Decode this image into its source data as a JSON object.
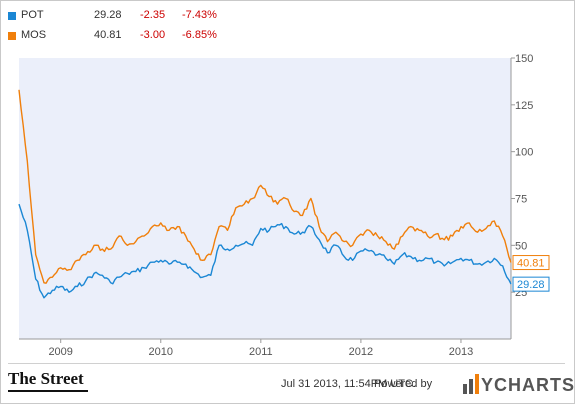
{
  "colors": {
    "pot": "#1b87d4",
    "mos": "#f07f0b",
    "negative": "#cc0000",
    "plot_bg": "#ebeffa"
  },
  "legend": [
    {
      "ticker": "POT",
      "price": "29.28",
      "change": "-2.35",
      "pct": "-7.43%",
      "color": "#1b87d4"
    },
    {
      "ticker": "MOS",
      "price": "40.81",
      "change": "-3.00",
      "pct": "-6.85%",
      "color": "#f07f0b"
    }
  ],
  "footer": {
    "brand": "The Street",
    "timestamp": "Jul 31 2013, 11:54PM UTC.",
    "powered_by": "Powered by",
    "logo_text": "YCHARTS"
  },
  "chart_data": {
    "type": "line",
    "title": "",
    "xlabel": "",
    "ylabel": "",
    "ylim": [
      0,
      150
    ],
    "yticks": [
      25,
      50,
      75,
      100,
      125,
      150
    ],
    "xticks": [
      "2009",
      "2010",
      "2011",
      "2012",
      "2013"
    ],
    "xrange": [
      "2008-08",
      "2013-07"
    ],
    "grid": false,
    "series": [
      {
        "name": "POT",
        "color": "#1b87d4",
        "last_label": "29.28",
        "points": [
          [
            "2008-08",
            72
          ],
          [
            "2008-09",
            58
          ],
          [
            "2008-10",
            32
          ],
          [
            "2008-11",
            22
          ],
          [
            "2008-12",
            26
          ],
          [
            "2009-01",
            28
          ],
          [
            "2009-02",
            25
          ],
          [
            "2009-03",
            28
          ],
          [
            "2009-04",
            31
          ],
          [
            "2009-05",
            35
          ],
          [
            "2009-06",
            34
          ],
          [
            "2009-07",
            30
          ],
          [
            "2009-08",
            33
          ],
          [
            "2009-09",
            35
          ],
          [
            "2009-10",
            36
          ],
          [
            "2009-11",
            38
          ],
          [
            "2009-12",
            41
          ],
          [
            "2010-01",
            42
          ],
          [
            "2010-02",
            40
          ],
          [
            "2010-03",
            41
          ],
          [
            "2010-04",
            40
          ],
          [
            "2010-05",
            36
          ],
          [
            "2010-06",
            33
          ],
          [
            "2010-07",
            34
          ],
          [
            "2010-08",
            50
          ],
          [
            "2010-09",
            48
          ],
          [
            "2010-10",
            50
          ],
          [
            "2010-11",
            51
          ],
          [
            "2010-12",
            50
          ],
          [
            "2011-01",
            59
          ],
          [
            "2011-02",
            58
          ],
          [
            "2011-03",
            61
          ],
          [
            "2011-04",
            60
          ],
          [
            "2011-05",
            56
          ],
          [
            "2011-06",
            57
          ],
          [
            "2011-07",
            60
          ],
          [
            "2011-08",
            53
          ],
          [
            "2011-09",
            46
          ],
          [
            "2011-10",
            50
          ],
          [
            "2011-11",
            44
          ],
          [
            "2011-12",
            42
          ],
          [
            "2012-01",
            47
          ],
          [
            "2012-02",
            47
          ],
          [
            "2012-03",
            45
          ],
          [
            "2012-04",
            43
          ],
          [
            "2012-05",
            40
          ],
          [
            "2012-06",
            45
          ],
          [
            "2012-07",
            44
          ],
          [
            "2012-08",
            42
          ],
          [
            "2012-09",
            43
          ],
          [
            "2012-10",
            41
          ],
          [
            "2012-11",
            39
          ],
          [
            "2012-12",
            41
          ],
          [
            "2013-01",
            43
          ],
          [
            "2013-02",
            42
          ],
          [
            "2013-03",
            40
          ],
          [
            "2013-04",
            41
          ],
          [
            "2013-05",
            43
          ],
          [
            "2013-06",
            39
          ],
          [
            "2013-07",
            29.28
          ]
        ]
      },
      {
        "name": "MOS",
        "color": "#f07f0b",
        "last_label": "40.81",
        "points": [
          [
            "2008-08",
            133
          ],
          [
            "2008-09",
            95
          ],
          [
            "2008-10",
            45
          ],
          [
            "2008-11",
            30
          ],
          [
            "2008-12",
            33
          ],
          [
            "2009-01",
            38
          ],
          [
            "2009-02",
            37
          ],
          [
            "2009-03",
            42
          ],
          [
            "2009-04",
            45
          ],
          [
            "2009-05",
            50
          ],
          [
            "2009-06",
            48
          ],
          [
            "2009-07",
            48
          ],
          [
            "2009-08",
            55
          ],
          [
            "2009-09",
            50
          ],
          [
            "2009-10",
            52
          ],
          [
            "2009-11",
            55
          ],
          [
            "2009-12",
            60
          ],
          [
            "2010-01",
            62
          ],
          [
            "2010-02",
            58
          ],
          [
            "2010-03",
            60
          ],
          [
            "2010-04",
            55
          ],
          [
            "2010-05",
            48
          ],
          [
            "2010-06",
            42
          ],
          [
            "2010-07",
            45
          ],
          [
            "2010-08",
            60
          ],
          [
            "2010-09",
            58
          ],
          [
            "2010-10",
            70
          ],
          [
            "2010-11",
            72
          ],
          [
            "2010-12",
            75
          ],
          [
            "2011-01",
            82
          ],
          [
            "2011-02",
            76
          ],
          [
            "2011-03",
            72
          ],
          [
            "2011-04",
            75
          ],
          [
            "2011-05",
            68
          ],
          [
            "2011-06",
            66
          ],
          [
            "2011-07",
            75
          ],
          [
            "2011-08",
            60
          ],
          [
            "2011-09",
            52
          ],
          [
            "2011-10",
            57
          ],
          [
            "2011-11",
            52
          ],
          [
            "2011-12",
            50
          ],
          [
            "2012-01",
            56
          ],
          [
            "2012-02",
            58
          ],
          [
            "2012-03",
            55
          ],
          [
            "2012-04",
            52
          ],
          [
            "2012-05",
            48
          ],
          [
            "2012-06",
            55
          ],
          [
            "2012-07",
            60
          ],
          [
            "2012-08",
            58
          ],
          [
            "2012-09",
            55
          ],
          [
            "2012-10",
            56
          ],
          [
            "2012-11",
            53
          ],
          [
            "2012-12",
            55
          ],
          [
            "2013-01",
            60
          ],
          [
            "2013-02",
            62
          ],
          [
            "2013-03",
            57
          ],
          [
            "2013-04",
            59
          ],
          [
            "2013-05",
            63
          ],
          [
            "2013-06",
            55
          ],
          [
            "2013-07",
            40.81
          ]
        ]
      }
    ]
  }
}
